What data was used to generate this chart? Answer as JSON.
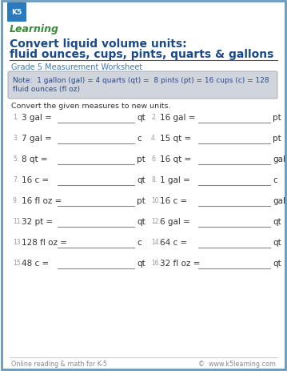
{
  "title_line1": "Convert liquid volume units:",
  "title_line2": "fluid ounces, cups, pints, quarts & gallons",
  "subtitle": "Grade 5 Measurement Worksheet",
  "note_line1": "Note:  1 gallon (gal) = 4 quarts (qt) =  8 pints (pt) = 16 cups (c) = 128",
  "note_line2": "fluid ounces (fl oz)",
  "instruction": "Convert the given measures to new units.",
  "problems": [
    {
      "num": "1.",
      "left": "3 gal =",
      "unit": "qt"
    },
    {
      "num": "2.",
      "left": "16 gal =",
      "unit": "pt"
    },
    {
      "num": "3.",
      "left": "7 gal =",
      "unit": "c"
    },
    {
      "num": "4.",
      "left": "15 qt =",
      "unit": "pt"
    },
    {
      "num": "5.",
      "left": "8 qt =",
      "unit": "pt"
    },
    {
      "num": "6.",
      "left": "16 qt =",
      "unit": "gal"
    },
    {
      "num": "7.",
      "left": "16 c =",
      "unit": "qt"
    },
    {
      "num": "8.",
      "left": "1 gal =",
      "unit": "c"
    },
    {
      "num": "9.",
      "left": "16 fl oz =",
      "unit": "pt"
    },
    {
      "num": "10.",
      "left": "16 c =",
      "unit": "gal"
    },
    {
      "num": "11.",
      "left": "32 pt =",
      "unit": "qt"
    },
    {
      "num": "12.",
      "left": "6 gal =",
      "unit": "qt"
    },
    {
      "num": "13.",
      "left": "128 fl oz =",
      "unit": "c"
    },
    {
      "num": "14.",
      "left": "64 c =",
      "unit": "qt"
    },
    {
      "num": "15.",
      "left": "48 c =",
      "unit": "qt"
    },
    {
      "num": "16.",
      "left": "32 fl oz =",
      "unit": "qt"
    }
  ],
  "footer_left": "Online reading & math for K-5",
  "footer_right": "©  www.k5learning.com",
  "title_color": "#1a4a8a",
  "subtitle_color": "#3a7abf",
  "note_color": "#2a4a7f",
  "border_color": "#6699bb",
  "note_bg": "#d0d5dd",
  "problem_color": "#333333",
  "num_color": "#999999",
  "footer_color": "#888888",
  "background": "#ffffff",
  "line_color": "#888888",
  "divider_color": "#555555"
}
